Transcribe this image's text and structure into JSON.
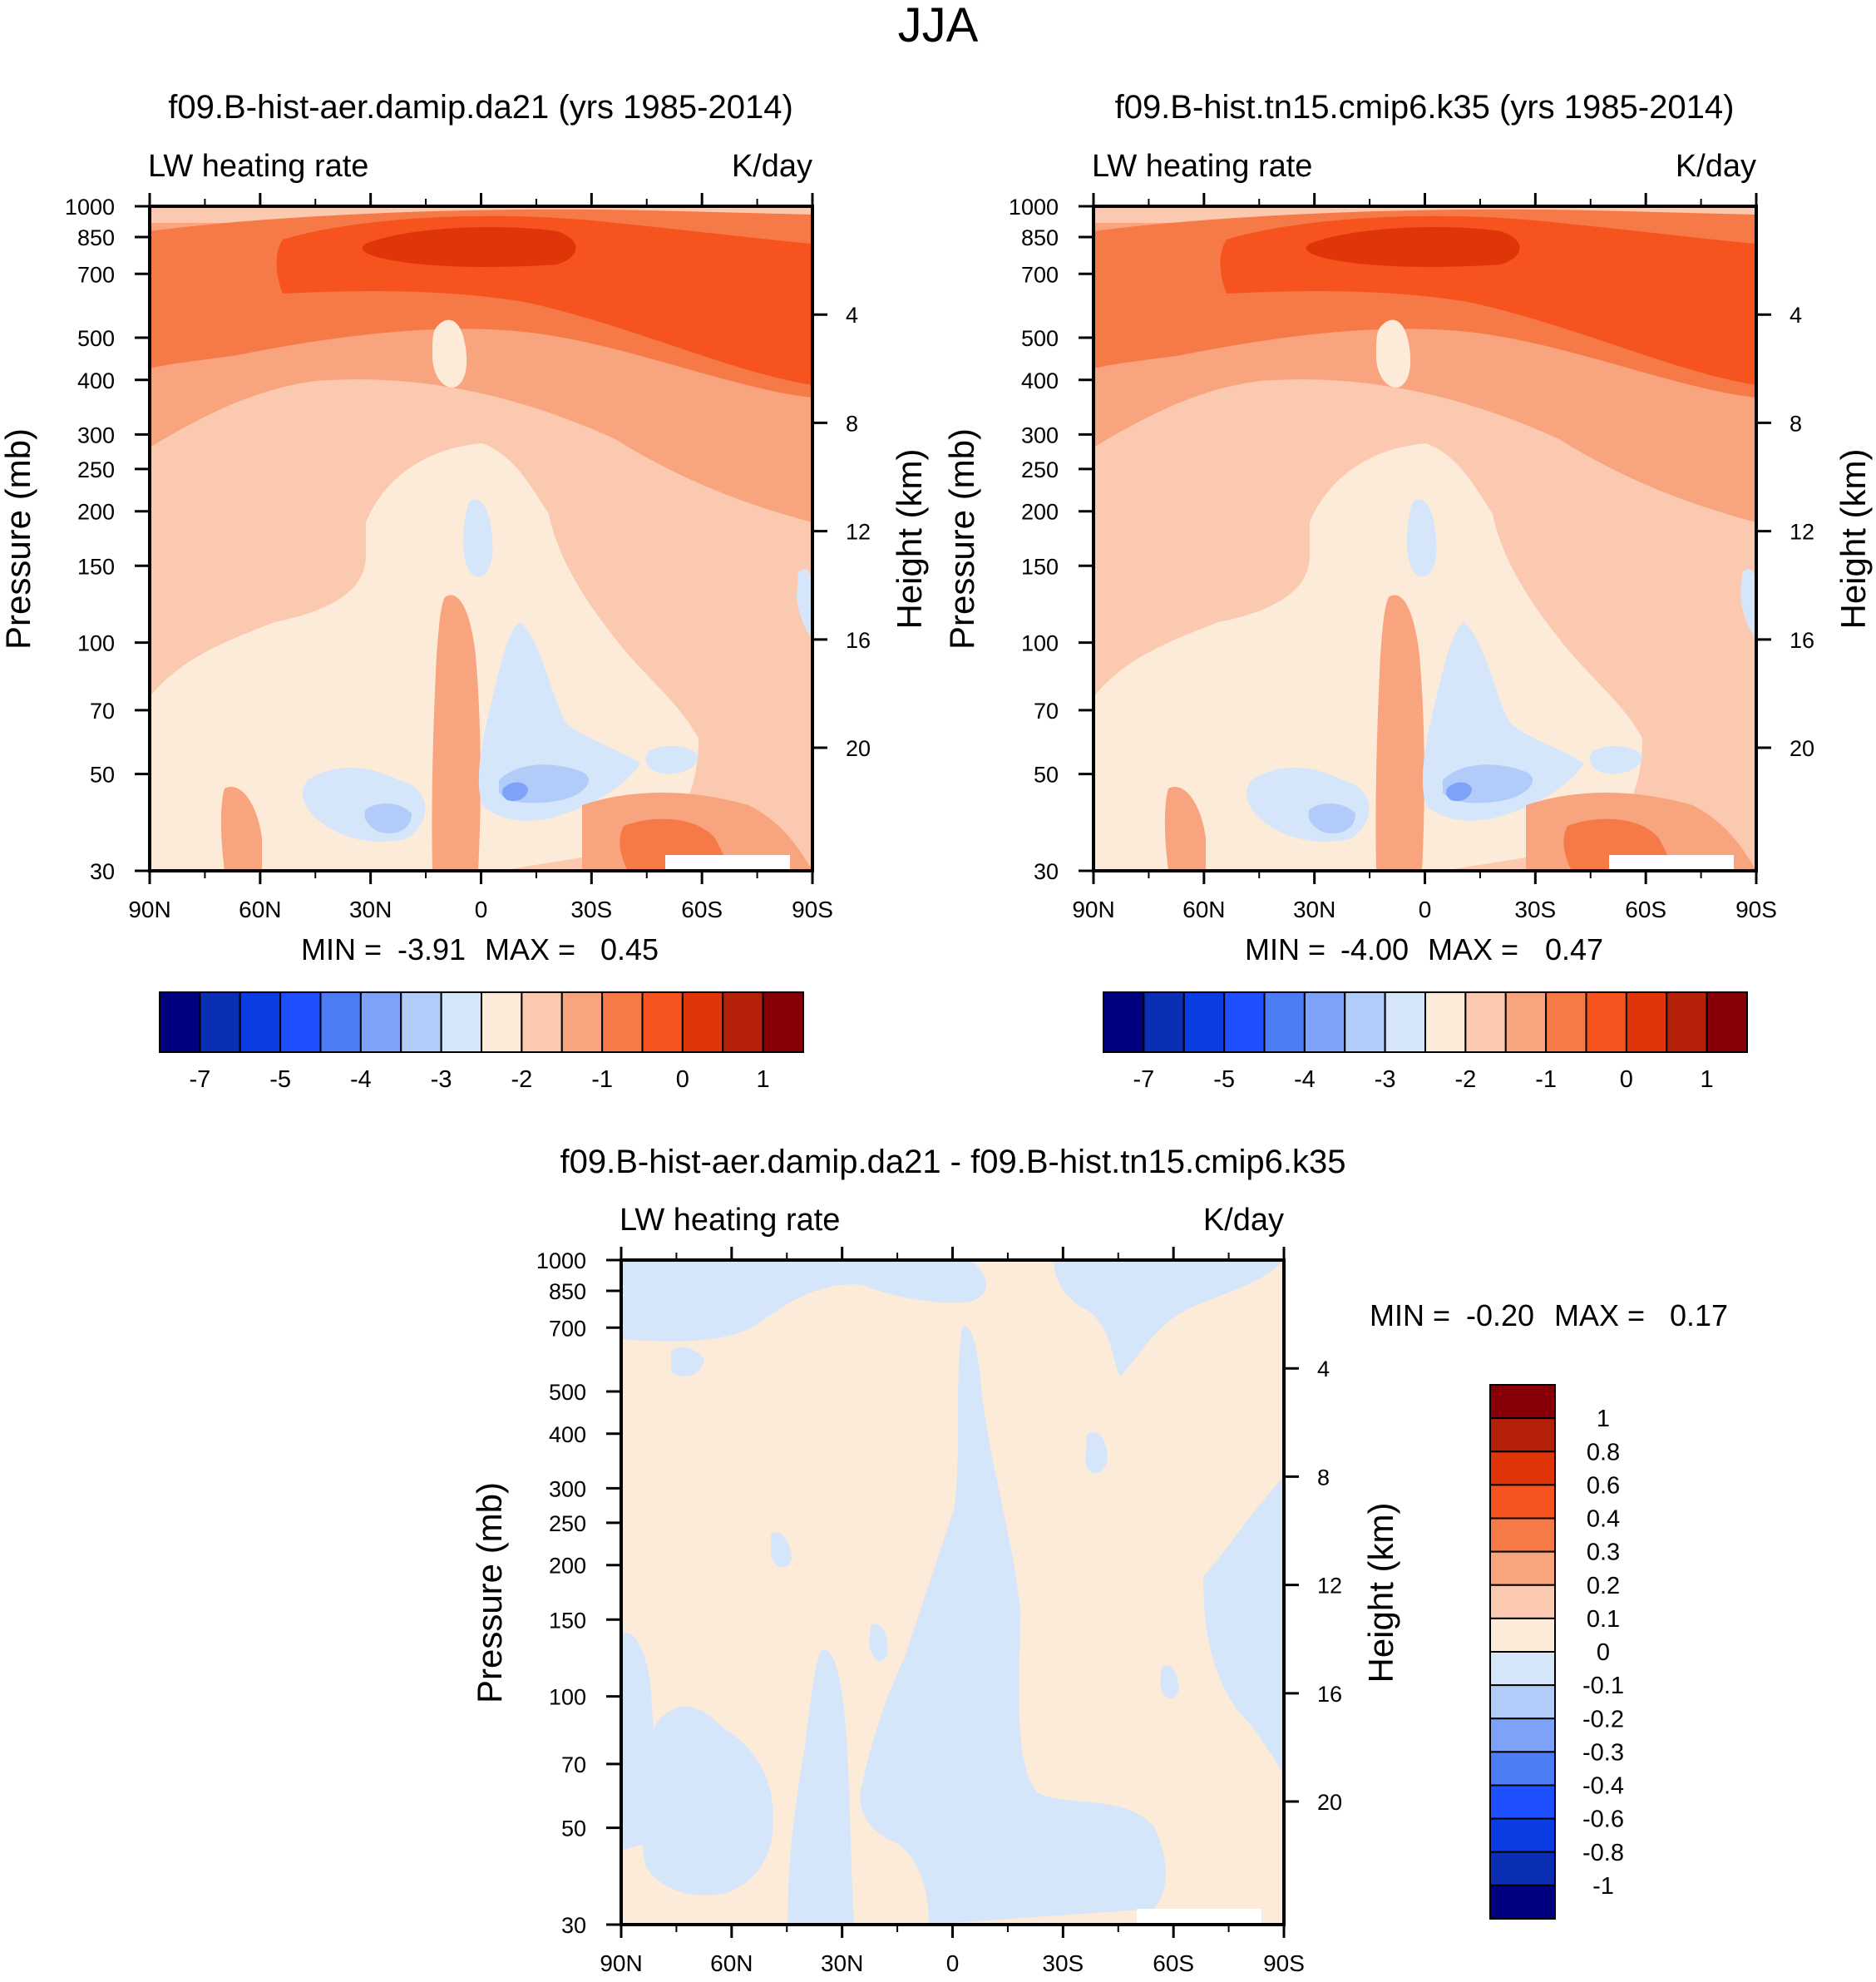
{
  "title": "JJA",
  "palette": {
    "n13": "#000080",
    "n12": "#0a2eb4",
    "n11": "#0a3ce4",
    "n10": "#1e50ff",
    "n9": "#4d7cf4",
    "n8": "#7ea2f7",
    "n7": "#b2ccfa",
    "n6": "#d5e6fb",
    "p1": "#fdebd9",
    "p2": "#fbc9b0",
    "p3": "#f8a47f",
    "p4": "#f67a47",
    "p5": "#f6531f",
    "p6": "#e03409",
    "p7": "#b42008",
    "p8": "#870008"
  },
  "chart_data": [
    {
      "id": "panel1",
      "type": "heatmap",
      "title": "f09.B-hist-aer.damip.da21 (yrs 1985-2014)",
      "variable_label": "LW heating rate",
      "units_label": "K/day",
      "xlabel": "",
      "ylabel": "Pressure (mb)",
      "y2label": "Height (km)",
      "x_ticks": [
        "90N",
        "60N",
        "30N",
        "0",
        "30S",
        "60S",
        "90S"
      ],
      "y_ticks": [
        "30",
        "50",
        "70",
        "100",
        "150",
        "200",
        "250",
        "300",
        "400",
        "500",
        "700",
        "850",
        "1000"
      ],
      "y2_ticks": [
        "20",
        "16",
        "12",
        "8",
        "4"
      ],
      "min_label": "MIN =",
      "min_value": "-3.91",
      "max_label": "MAX =",
      "max_value": "0.45",
      "colorbar_labels": [
        "-7",
        "-5",
        "-4",
        "-3",
        "-2",
        "-1",
        "0",
        "1"
      ]
    },
    {
      "id": "panel2",
      "type": "heatmap",
      "title": "f09.B-hist.tn15.cmip6.k35 (yrs 1985-2014)",
      "variable_label": "LW heating rate",
      "units_label": "K/day",
      "xlabel": "",
      "ylabel": "Pressure (mb)",
      "y2label": "Height (km)",
      "x_ticks": [
        "90N",
        "60N",
        "30N",
        "0",
        "30S",
        "60S",
        "90S"
      ],
      "y_ticks": [
        "30",
        "50",
        "70",
        "100",
        "150",
        "200",
        "250",
        "300",
        "400",
        "500",
        "700",
        "850",
        "1000"
      ],
      "y2_ticks": [
        "20",
        "16",
        "12",
        "8",
        "4"
      ],
      "min_label": "MIN =",
      "min_value": "-4.00",
      "max_label": "MAX =",
      "max_value": "0.47",
      "colorbar_labels": [
        "-7",
        "-5",
        "-4",
        "-3",
        "-2",
        "-1",
        "0",
        "1"
      ]
    },
    {
      "id": "panel3",
      "type": "heatmap",
      "title": "f09.B-hist-aer.damip.da21 - f09.B-hist.tn15.cmip6.k35",
      "variable_label": "LW heating rate",
      "units_label": "K/day",
      "xlabel": "",
      "ylabel": "Pressure (mb)",
      "y2label": "Height (km)",
      "x_ticks": [
        "90N",
        "60N",
        "30N",
        "0",
        "30S",
        "60S",
        "90S"
      ],
      "y_ticks": [
        "30",
        "50",
        "70",
        "100",
        "150",
        "200",
        "250",
        "300",
        "400",
        "500",
        "700",
        "850",
        "1000"
      ],
      "y2_ticks": [
        "20",
        "16",
        "12",
        "8",
        "4"
      ],
      "min_label": "MIN =",
      "min_value": "-0.20",
      "max_label": "MAX =",
      "max_value": "0.17",
      "colorbar_labels": [
        "1",
        "0.8",
        "0.6",
        "0.4",
        "0.3",
        "0.2",
        "0.1",
        "0",
        "-0.1",
        "-0.2",
        "-0.3",
        "-0.4",
        "-0.6",
        "-0.8",
        "-1"
      ]
    }
  ]
}
